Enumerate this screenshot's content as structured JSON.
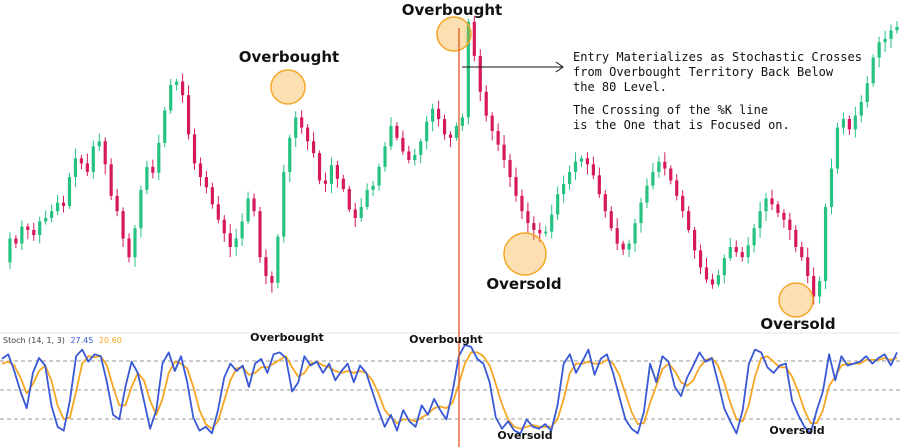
{
  "chart_data": {
    "type": "candlestick",
    "colors": {
      "up": "#26c281",
      "down": "#d6195c",
      "k_line": "#3858d6",
      "d_line": "#f5a623",
      "entry_line": "#e05a1e",
      "circle": "#f5a623",
      "circle_fill": "#fbd7a0"
    },
    "price_path": [
      90,
      118,
      112,
      132,
      128,
      122,
      138,
      142,
      150,
      160,
      156,
      190,
      212,
      206,
      196,
      226,
      232,
      205,
      168,
      150,
      118,
      96,
      130,
      175,
      202,
      195,
      230,
      268,
      298,
      302,
      286,
      240,
      206,
      190,
      178,
      158,
      140,
      124,
      108,
      118,
      138,
      165,
      150,
      96,
      74,
      66,
      120,
      196,
      236,
      260,
      248,
      232,
      218,
      186,
      182,
      204,
      188,
      176,
      152,
      142,
      155,
      175,
      180,
      202,
      226,
      250,
      236,
      220,
      210,
      216,
      232,
      255,
      270,
      258,
      240,
      236,
      250,
      260,
      372,
      332,
      290,
      262,
      244,
      228,
      210,
      190,
      168,
      150,
      136,
      128,
      124,
      126,
      146,
      170,
      182,
      196,
      208,
      212,
      205,
      192,
      170,
      150,
      130,
      112,
      105,
      112,
      136,
      160,
      180,
      196,
      208,
      200,
      186,
      168,
      150,
      128,
      104,
      84,
      70,
      64,
      75,
      95,
      108,
      102,
      96,
      110,
      130,
      150,
      165,
      158,
      148,
      140,
      128,
      108,
      96,
      74,
      50,
      68,
      155,
      200,
      248,
      258,
      246,
      262,
      278,
      300,
      330,
      348,
      352,
      362,
      366
    ],
    "stoch_k": [
      85,
      90,
      72,
      50,
      32,
      70,
      86,
      78,
      35,
      12,
      8,
      40,
      88,
      95,
      82,
      90,
      88,
      60,
      25,
      20,
      55,
      82,
      70,
      40,
      10,
      30,
      80,
      92,
      72,
      88,
      60,
      22,
      8,
      12,
      5,
      30,
      65,
      80,
      72,
      78,
      55,
      80,
      85,
      70,
      90,
      92,
      86,
      50,
      60,
      88,
      78,
      82,
      70,
      80,
      62,
      72,
      80,
      60,
      78,
      70,
      50,
      30,
      12,
      25,
      8,
      30,
      18,
      12,
      35,
      25,
      42,
      30,
      20,
      50,
      88,
      100,
      98,
      85,
      80,
      60,
      22,
      10,
      18,
      8,
      5,
      20,
      12,
      10,
      15,
      8,
      35,
      80,
      90,
      70,
      82,
      95,
      68,
      85,
      90,
      70,
      45,
      20,
      10,
      5,
      28,
      80,
      60,
      88,
      82,
      55,
      45,
      65,
      78,
      92,
      82,
      86,
      60,
      32,
      18,
      5,
      30,
      80,
      95,
      92,
      76,
      70,
      78,
      80,
      40,
      25,
      12,
      5,
      30,
      50,
      90,
      62,
      88,
      78,
      80,
      82,
      88,
      80,
      86,
      90,
      78,
      92
    ],
    "stoch_d": [
      80,
      82,
      78,
      65,
      48,
      58,
      72,
      78,
      62,
      35,
      20,
      22,
      50,
      80,
      88,
      87,
      88,
      78,
      55,
      35,
      35,
      55,
      70,
      62,
      40,
      25,
      42,
      70,
      82,
      80,
      75,
      55,
      30,
      15,
      10,
      18,
      40,
      62,
      75,
      76,
      68,
      70,
      76,
      76,
      80,
      84,
      88,
      76,
      66,
      70,
      80,
      82,
      78,
      76,
      72,
      70,
      72,
      70,
      72,
      70,
      62,
      48,
      30,
      22,
      16,
      20,
      20,
      18,
      22,
      26,
      32,
      34,
      32,
      38,
      58,
      80,
      92,
      92,
      88,
      78,
      58,
      36,
      20,
      12,
      10,
      12,
      14,
      12,
      12,
      12,
      20,
      42,
      70,
      80,
      80,
      82,
      80,
      80,
      84,
      80,
      68,
      48,
      28,
      15,
      16,
      38,
      56,
      74,
      80,
      72,
      60,
      56,
      62,
      76,
      84,
      86,
      78,
      60,
      38,
      20,
      18,
      36,
      66,
      86,
      88,
      82,
      76,
      76,
      66,
      50,
      30,
      16,
      16,
      30,
      56,
      66,
      78,
      80,
      80,
      80,
      84,
      84,
      84,
      86,
      84,
      86
    ],
    "stoch_levels": [
      80,
      50,
      20
    ]
  },
  "labels": {
    "overbought": "Overbought",
    "oversold": "Oversold",
    "note_lines": [
      "Entry Materializes as Stochastic Crosses",
      "from Overbought Territory Back Below",
      "the 80 Level.",
      "",
      "The Crossing of the %K line",
      "is the One that is Focused on."
    ],
    "stoch_legend_name": "Stoch (14, 1, 3)",
    "stoch_legend_k": "27.45",
    "stoch_legend_d": "20.60"
  }
}
